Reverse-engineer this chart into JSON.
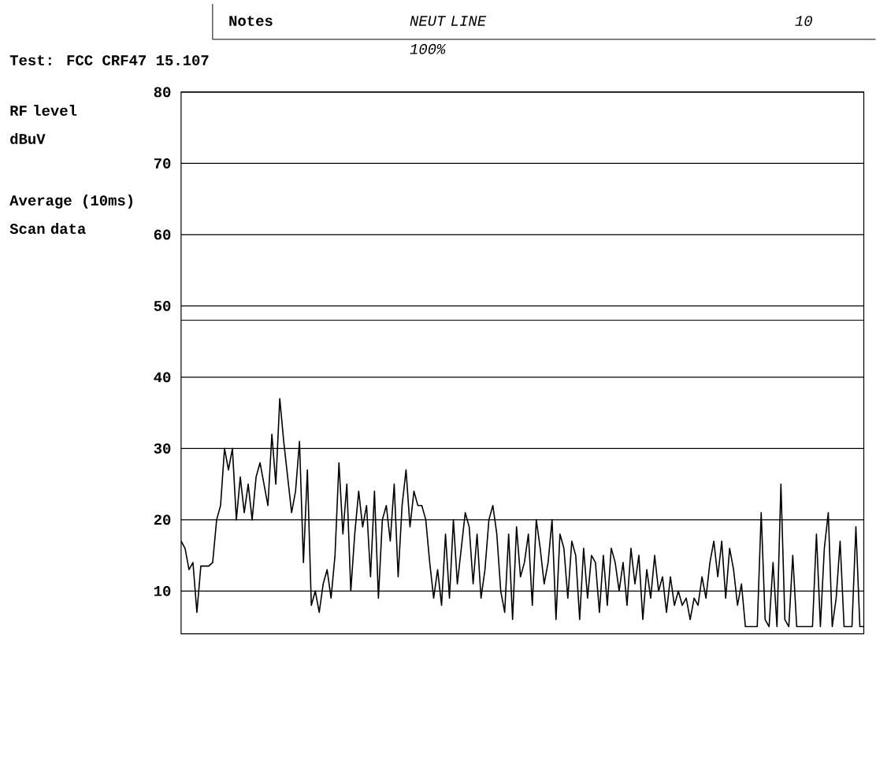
{
  "chart_data": {
    "type": "line",
    "title": "Test: FCC CRF47 15.107",
    "subtitle": "Average (10ms)",
    "annotations": [
      "Notes",
      "NEUT LINE 100%",
      "10",
      "Scan data",
      "RF level dBuV"
    ],
    "categories": [
      null,
      null,
      null,
      null,
      null,
      null,
      null,
      null,
      null,
      null,
      null,
      null,
      null,
      null,
      null,
      null,
      null,
      null,
      null,
      null,
      null,
      null,
      null,
      null,
      null,
      null,
      null,
      null,
      null,
      null,
      null,
      null,
      null,
      null,
      null,
      null,
      null,
      null,
      null,
      null,
      null,
      null,
      null,
      null,
      null,
      null,
      null,
      null,
      null,
      null,
      null,
      null,
      null,
      null,
      null,
      null,
      null,
      null,
      null,
      null,
      null,
      null,
      null,
      null,
      null,
      null,
      null,
      null,
      null,
      null,
      null,
      null,
      null,
      null,
      null,
      null,
      null,
      null,
      null,
      null,
      null,
      null,
      null,
      null,
      null,
      null,
      null,
      null,
      null,
      null,
      null,
      null,
      null,
      null,
      null,
      null,
      null,
      null,
      null,
      null,
      null,
      null,
      null,
      null,
      null,
      null,
      null,
      null,
      null,
      null,
      null,
      null,
      null,
      null,
      null,
      null,
      null,
      null,
      null,
      null,
      null,
      null,
      null,
      null,
      null,
      null,
      null,
      null,
      null,
      null,
      null,
      null,
      null,
      null,
      null,
      null,
      null,
      null,
      null,
      null,
      null,
      null,
      null,
      null,
      null,
      null,
      null,
      null,
      null,
      null,
      null,
      null,
      null,
      null,
      null,
      null,
      null,
      null,
      null,
      null,
      null,
      null,
      null,
      null,
      null,
      null,
      null,
      null,
      null,
      null,
      null,
      null,
      null,
      null
    ],
    "series": [
      {
        "color": "#000000",
        "values": [
          17,
          16,
          13,
          14,
          7,
          13.5,
          13.5,
          13.5,
          14,
          20,
          22,
          30,
          27,
          30,
          20,
          26,
          21,
          25,
          20,
          26,
          28,
          25,
          22,
          32,
          25,
          37,
          31,
          26,
          21,
          24,
          31,
          14,
          27,
          8,
          10,
          7,
          11,
          13,
          9,
          15,
          28,
          18,
          25,
          10,
          18,
          24,
          19,
          22,
          12,
          24,
          9,
          20,
          22,
          17,
          25,
          12,
          22,
          27,
          19,
          24,
          22,
          22,
          20,
          14,
          9,
          13,
          8,
          18,
          9,
          20,
          11,
          16,
          21,
          19,
          11,
          18,
          9,
          13,
          20,
          22,
          18,
          10,
          7,
          18,
          6,
          19,
          12,
          14,
          18,
          8,
          20,
          16,
          11,
          14,
          20,
          6,
          18,
          16,
          9,
          17,
          15,
          6,
          16,
          9,
          15,
          14,
          7,
          15,
          8,
          16,
          14,
          10,
          14,
          8,
          16,
          11,
          15,
          6,
          13,
          9,
          15,
          10,
          12,
          7,
          12,
          8,
          10,
          8,
          9,
          6,
          9,
          8,
          12,
          9,
          14,
          17,
          12,
          17,
          9,
          16,
          13,
          8,
          11,
          5,
          5,
          5,
          5,
          21,
          6,
          5,
          14,
          5,
          25,
          6,
          5,
          15,
          5,
          5,
          5,
          5,
          5,
          18,
          5,
          16,
          21,
          5,
          9,
          17,
          5,
          5,
          5,
          19,
          5,
          5
        ]
      }
    ],
    "ylim": [
      4,
      80
    ],
    "yticks": [
      10,
      20,
      30,
      40,
      50,
      60,
      70,
      80
    ],
    "grid": "y",
    "marker": "none",
    "line_style": "solid",
    "ref_lines": [
      {
        "axis": "y",
        "value": 48,
        "color": "#000000"
      }
    ]
  }
}
